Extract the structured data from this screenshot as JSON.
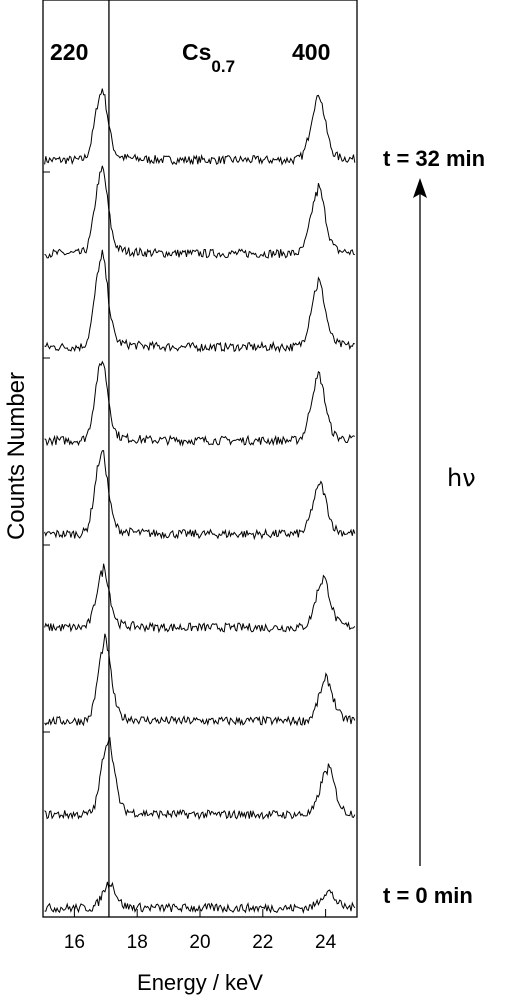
{
  "chart_data": {
    "type": "line",
    "xlabel": "Energy /  keV",
    "ylabel": "Counts Number",
    "xlim": [
      15,
      25
    ],
    "xticks": [
      16,
      18,
      20,
      22,
      24
    ],
    "grid": false,
    "reference_line_x": 17.1,
    "peak_labels": [
      "220",
      "400"
    ],
    "sample_label": {
      "main": "Cs",
      "sub": "0.7"
    },
    "time_labels": {
      "top": "t = 32 min",
      "bottom": "t = 0 min"
    },
    "arrow_label": "hν",
    "series": [
      {
        "peaks": [
          {
            "x": 16.85,
            "h": 0.6
          },
          {
            "x": 23.75,
            "h": 0.55
          }
        ]
      },
      {
        "peaks": [
          {
            "x": 16.85,
            "h": 0.72
          },
          {
            "x": 23.75,
            "h": 0.55
          }
        ]
      },
      {
        "peaks": [
          {
            "x": 16.85,
            "h": 0.78
          },
          {
            "x": 23.75,
            "h": 0.55
          }
        ]
      },
      {
        "peaks": [
          {
            "x": 16.85,
            "h": 0.68
          },
          {
            "x": 23.75,
            "h": 0.55
          }
        ]
      },
      {
        "peaks": [
          {
            "x": 16.85,
            "h": 0.7
          },
          {
            "x": 23.8,
            "h": 0.42
          }
        ]
      },
      {
        "peaks": [
          {
            "x": 16.9,
            "h": 0.5
          },
          {
            "x": 23.9,
            "h": 0.42
          }
        ]
      },
      {
        "peaks": [
          {
            "x": 16.95,
            "h": 0.68
          },
          {
            "x": 24.0,
            "h": 0.35
          }
        ]
      },
      {
        "peaks": [
          {
            "x": 17.05,
            "h": 0.65
          },
          {
            "x": 24.05,
            "h": 0.4
          }
        ]
      },
      {
        "peaks": [
          {
            "x": 17.1,
            "h": 0.22
          },
          {
            "x": 24.05,
            "h": 0.14
          }
        ]
      }
    ]
  }
}
